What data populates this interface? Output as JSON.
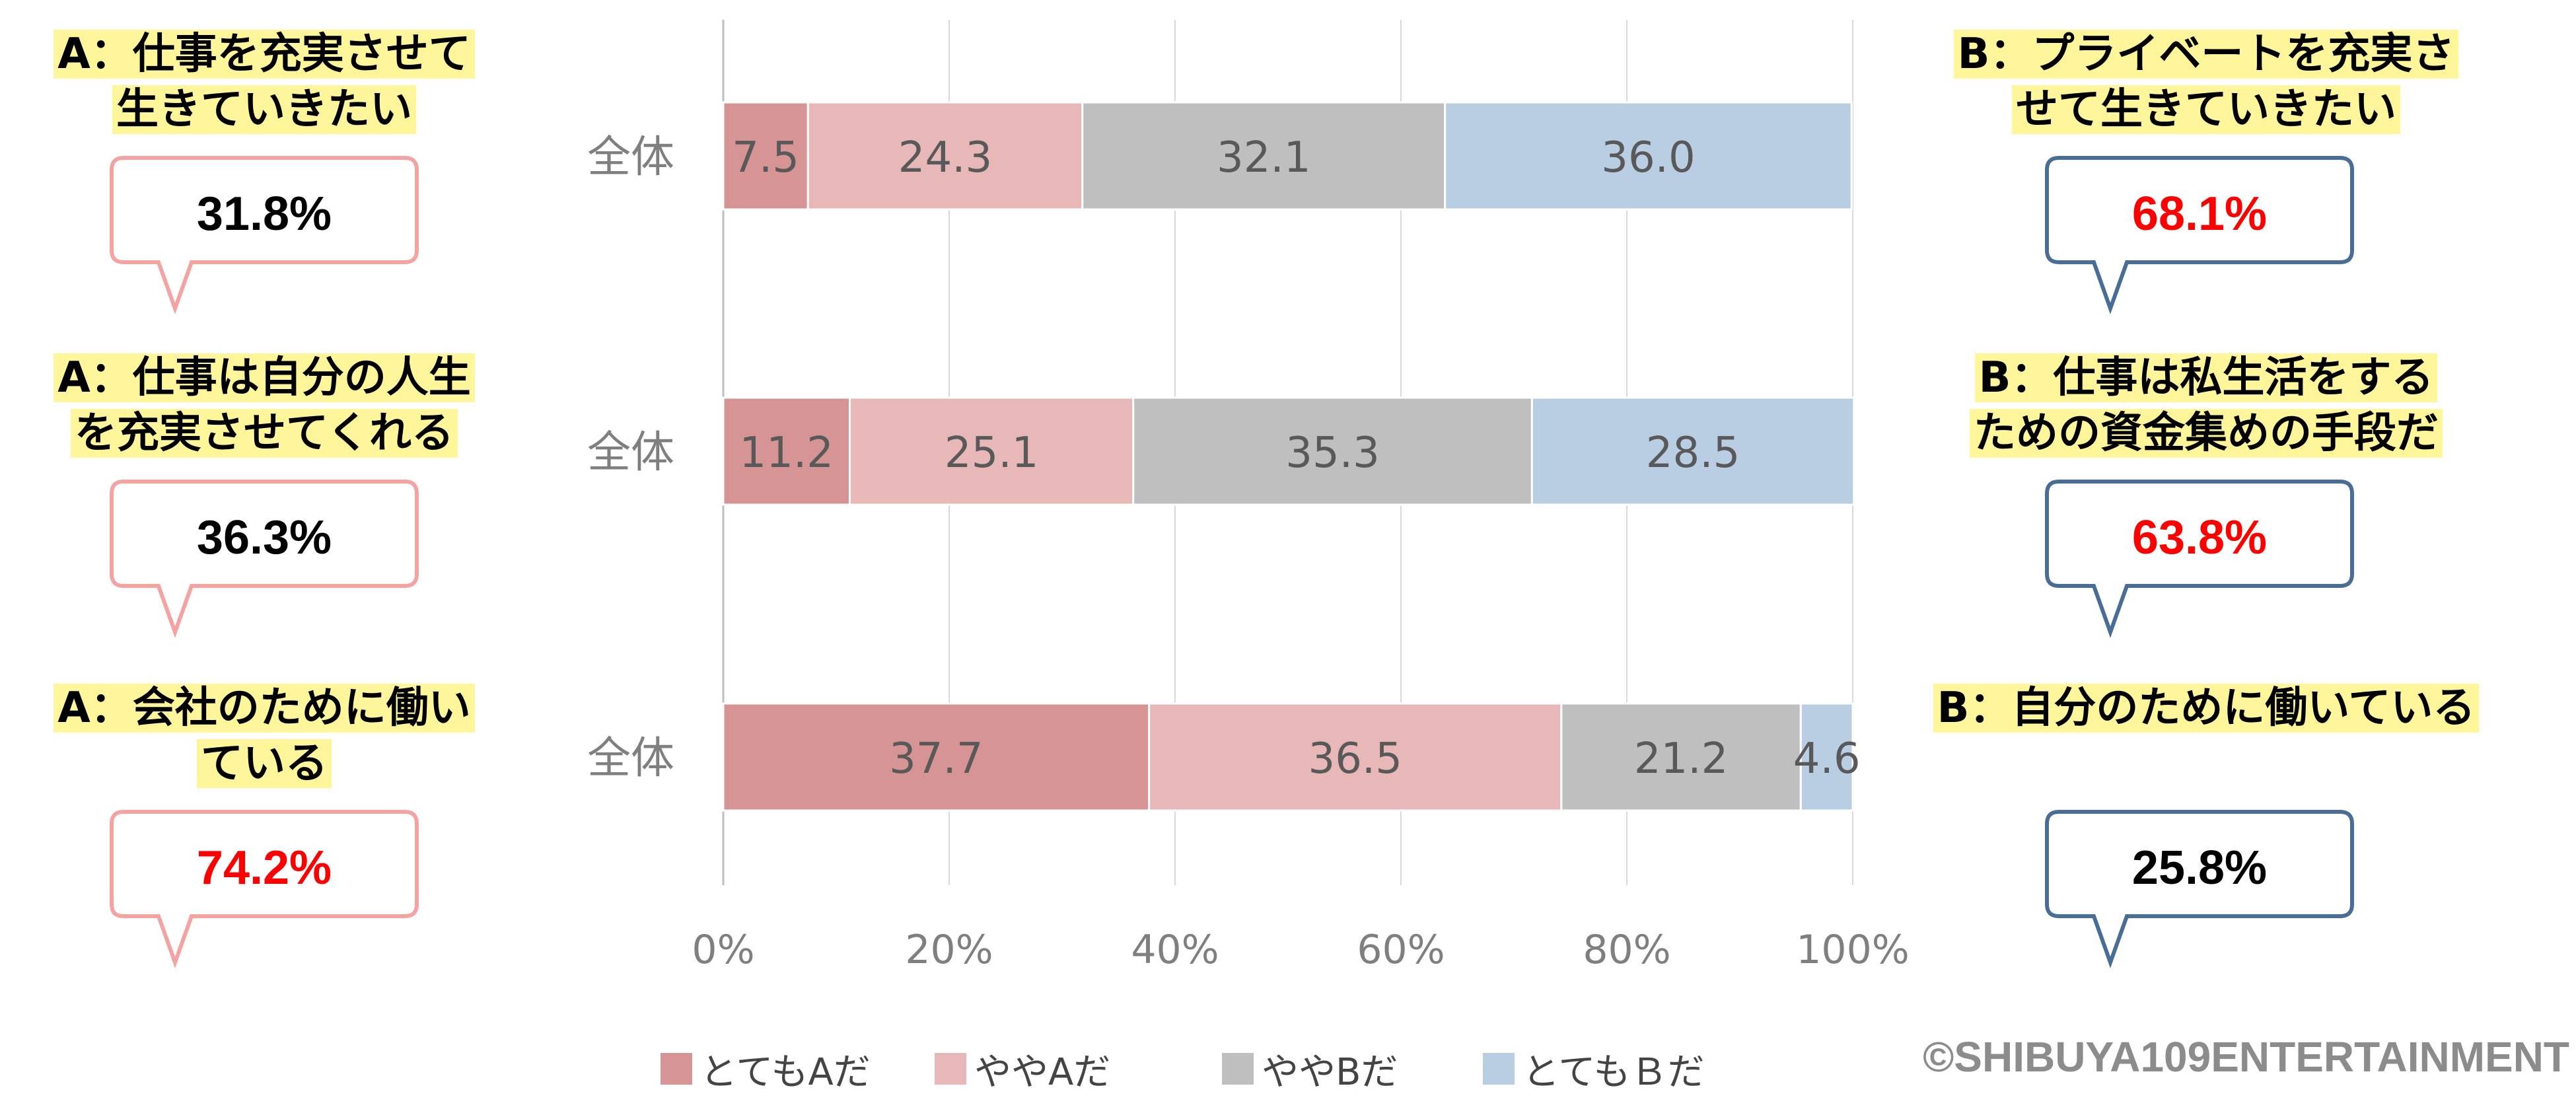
{
  "chart_data": {
    "type": "bar",
    "orientation": "horizontal",
    "stacked": true,
    "categories": [
      "全体",
      "全体",
      "全体"
    ],
    "series": [
      {
        "name": "とてもAだ",
        "values": [
          7.5,
          11.2,
          37.7
        ]
      },
      {
        "name": "ややAだ",
        "values": [
          24.3,
          25.1,
          36.5
        ]
      },
      {
        "name": "ややBだ",
        "values": [
          32.1,
          35.3,
          21.2
        ]
      },
      {
        "name": "とてもＢだ",
        "values": [
          36.0,
          28.5,
          4.6
        ]
      }
    ],
    "data_labels": [
      [
        "7.5",
        "24.3",
        "32.1",
        "36.0"
      ],
      [
        "11.2",
        "25.1",
        "35.3",
        "28.5"
      ],
      [
        "37.7",
        "36.5",
        "21.2",
        "4.6"
      ]
    ],
    "x_ticks": [
      "0%",
      "20%",
      "40%",
      "60%",
      "80%",
      "100%"
    ],
    "xlim": [
      0,
      100
    ],
    "grid": true,
    "legend_position": "bottom",
    "colors": [
      "#d79494",
      "#e8b8b8",
      "#bfbfbf",
      "#b9cde3"
    ]
  },
  "questions": [
    {
      "a_label": "A：仕事を充実させて生きていきたい",
      "a_lines": [
        "A：仕事を充実させて",
        "生きていきたい"
      ],
      "a_percent": "31.8%",
      "a_highlight": false,
      "b_label": "B：プライベートを充実させて生きていきたい",
      "b_lines": [
        "B：プライベートを充実さ",
        "せて生きていきたい"
      ],
      "b_percent": "68.1%",
      "b_highlight": true
    },
    {
      "a_label": "A：仕事は自分の人生を充実させてくれる",
      "a_lines": [
        "A：仕事は自分の人生",
        "を充実させてくれる"
      ],
      "a_percent": "36.3%",
      "a_highlight": false,
      "b_label": "B：仕事は私生活をするための資金集めの手段だ",
      "b_lines": [
        "B：仕事は私生活をする",
        "ための資金集めの手段だ"
      ],
      "b_percent": "63.8%",
      "b_highlight": true
    },
    {
      "a_label": "A：会社のために働いている",
      "a_lines": [
        "A：会社のために働い",
        "ている"
      ],
      "a_percent": "74.2%",
      "a_highlight": true,
      "b_label": "B：自分のために働いている",
      "b_lines": [
        "B：自分のために働いている"
      ],
      "b_percent": "25.8%",
      "b_highlight": false
    }
  ],
  "styles": {
    "a_bubble_border": "#f4a3a3",
    "b_bubble_border": "#4a6d96",
    "highlight_text": "#ff0000",
    "normal_text": "#000000",
    "label_highlight": "#fff59a"
  },
  "copyright": "©SHIBUYA109ENTERTAINMENT"
}
